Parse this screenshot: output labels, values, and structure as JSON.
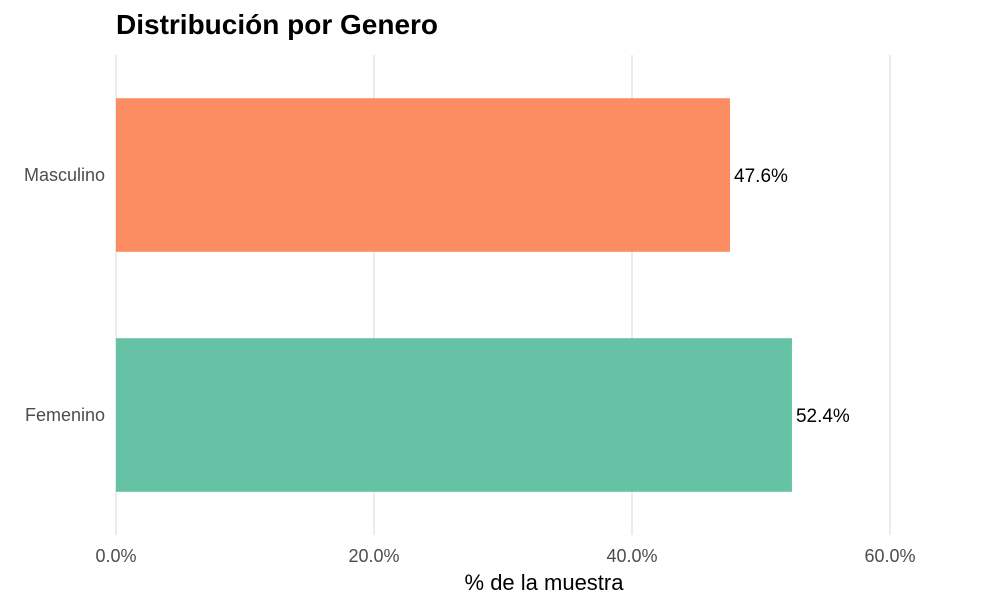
{
  "chart_data": {
    "type": "bar",
    "orientation": "horizontal",
    "title": "Distribución por Genero",
    "xlabel": "% de la muestra",
    "ylabel": "",
    "categories": [
      "Femenino",
      "Masculino"
    ],
    "values": [
      52.4,
      47.6
    ],
    "data_labels": [
      "52.4%",
      "47.6%"
    ],
    "colors": [
      "#66c2a5",
      "#fc8d62"
    ],
    "xlim": [
      0,
      60
    ],
    "x_ticks": [
      0,
      20,
      40,
      60
    ],
    "x_tick_labels": [
      "0.0%",
      "20.0%",
      "40.0%",
      "60.0%"
    ],
    "grid": "vertical",
    "legend": "none"
  }
}
